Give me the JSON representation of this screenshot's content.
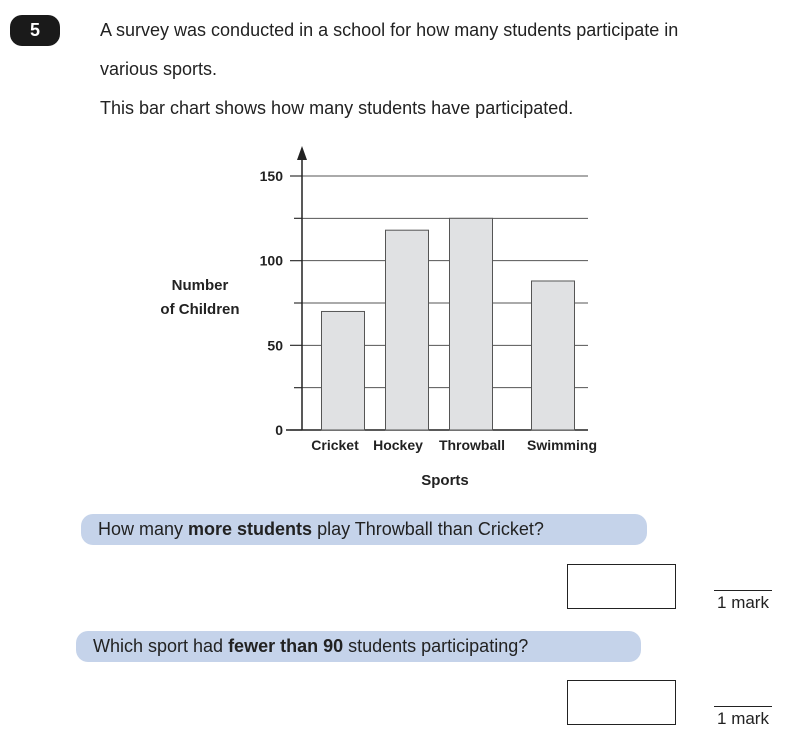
{
  "question_number": "5",
  "intro": [
    "A survey was conducted in a school for how many students participate in various sports.",
    "This bar chart shows how many students have participated."
  ],
  "chart_data": {
    "type": "bar",
    "categories": [
      "Cricket",
      "Hockey",
      "Throwball",
      "Swimming"
    ],
    "values": [
      70,
      118,
      125,
      88
    ],
    "color": "#e0e1e3",
    "ylabel": [
      "Number",
      "of Children"
    ],
    "xlabel": "Sports",
    "ylim": [
      0,
      150
    ],
    "yticks": [
      0,
      50,
      100,
      150
    ],
    "minor_yticks": [
      25,
      75,
      125
    ],
    "grid": true
  },
  "questions": [
    {
      "parts": [
        "How many ",
        "more students",
        " play Throwball than Cricket?"
      ],
      "mark": "1 mark"
    },
    {
      "parts": [
        "Which sport had ",
        "fewer than 90",
        " students participating?"
      ],
      "mark": "1 mark"
    }
  ]
}
